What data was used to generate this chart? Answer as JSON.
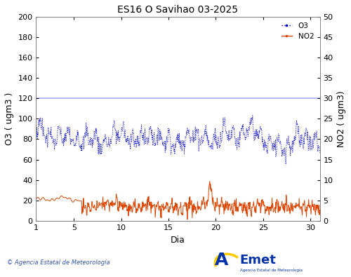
{
  "title": "ES16 O Savihao 03-2025",
  "xlabel": "Dia",
  "ylabel_left": "O3 ( ugm3 )",
  "ylabel_right": "NO2 ( ugm3)",
  "ylim_left": [
    0,
    200
  ],
  "ylim_right": [
    0,
    50
  ],
  "xlim": [
    1,
    31
  ],
  "yticks_left": [
    0,
    20,
    40,
    60,
    80,
    100,
    120,
    140,
    160,
    180,
    200
  ],
  "yticks_right": [
    0,
    5,
    10,
    15,
    20,
    25,
    30,
    35,
    40,
    45,
    50
  ],
  "xticks": [
    1,
    5,
    10,
    15,
    20,
    25,
    30
  ],
  "hline_y_left": 120,
  "hline_color": "#aaaaff",
  "o3_color": "#0000cc",
  "no2_color": "#dd4400",
  "legend_o3": "O3",
  "legend_no2": "NO2",
  "background_color": "#ffffff",
  "title_fontsize": 10,
  "axis_label_fontsize": 9,
  "tick_labelsize": 8
}
